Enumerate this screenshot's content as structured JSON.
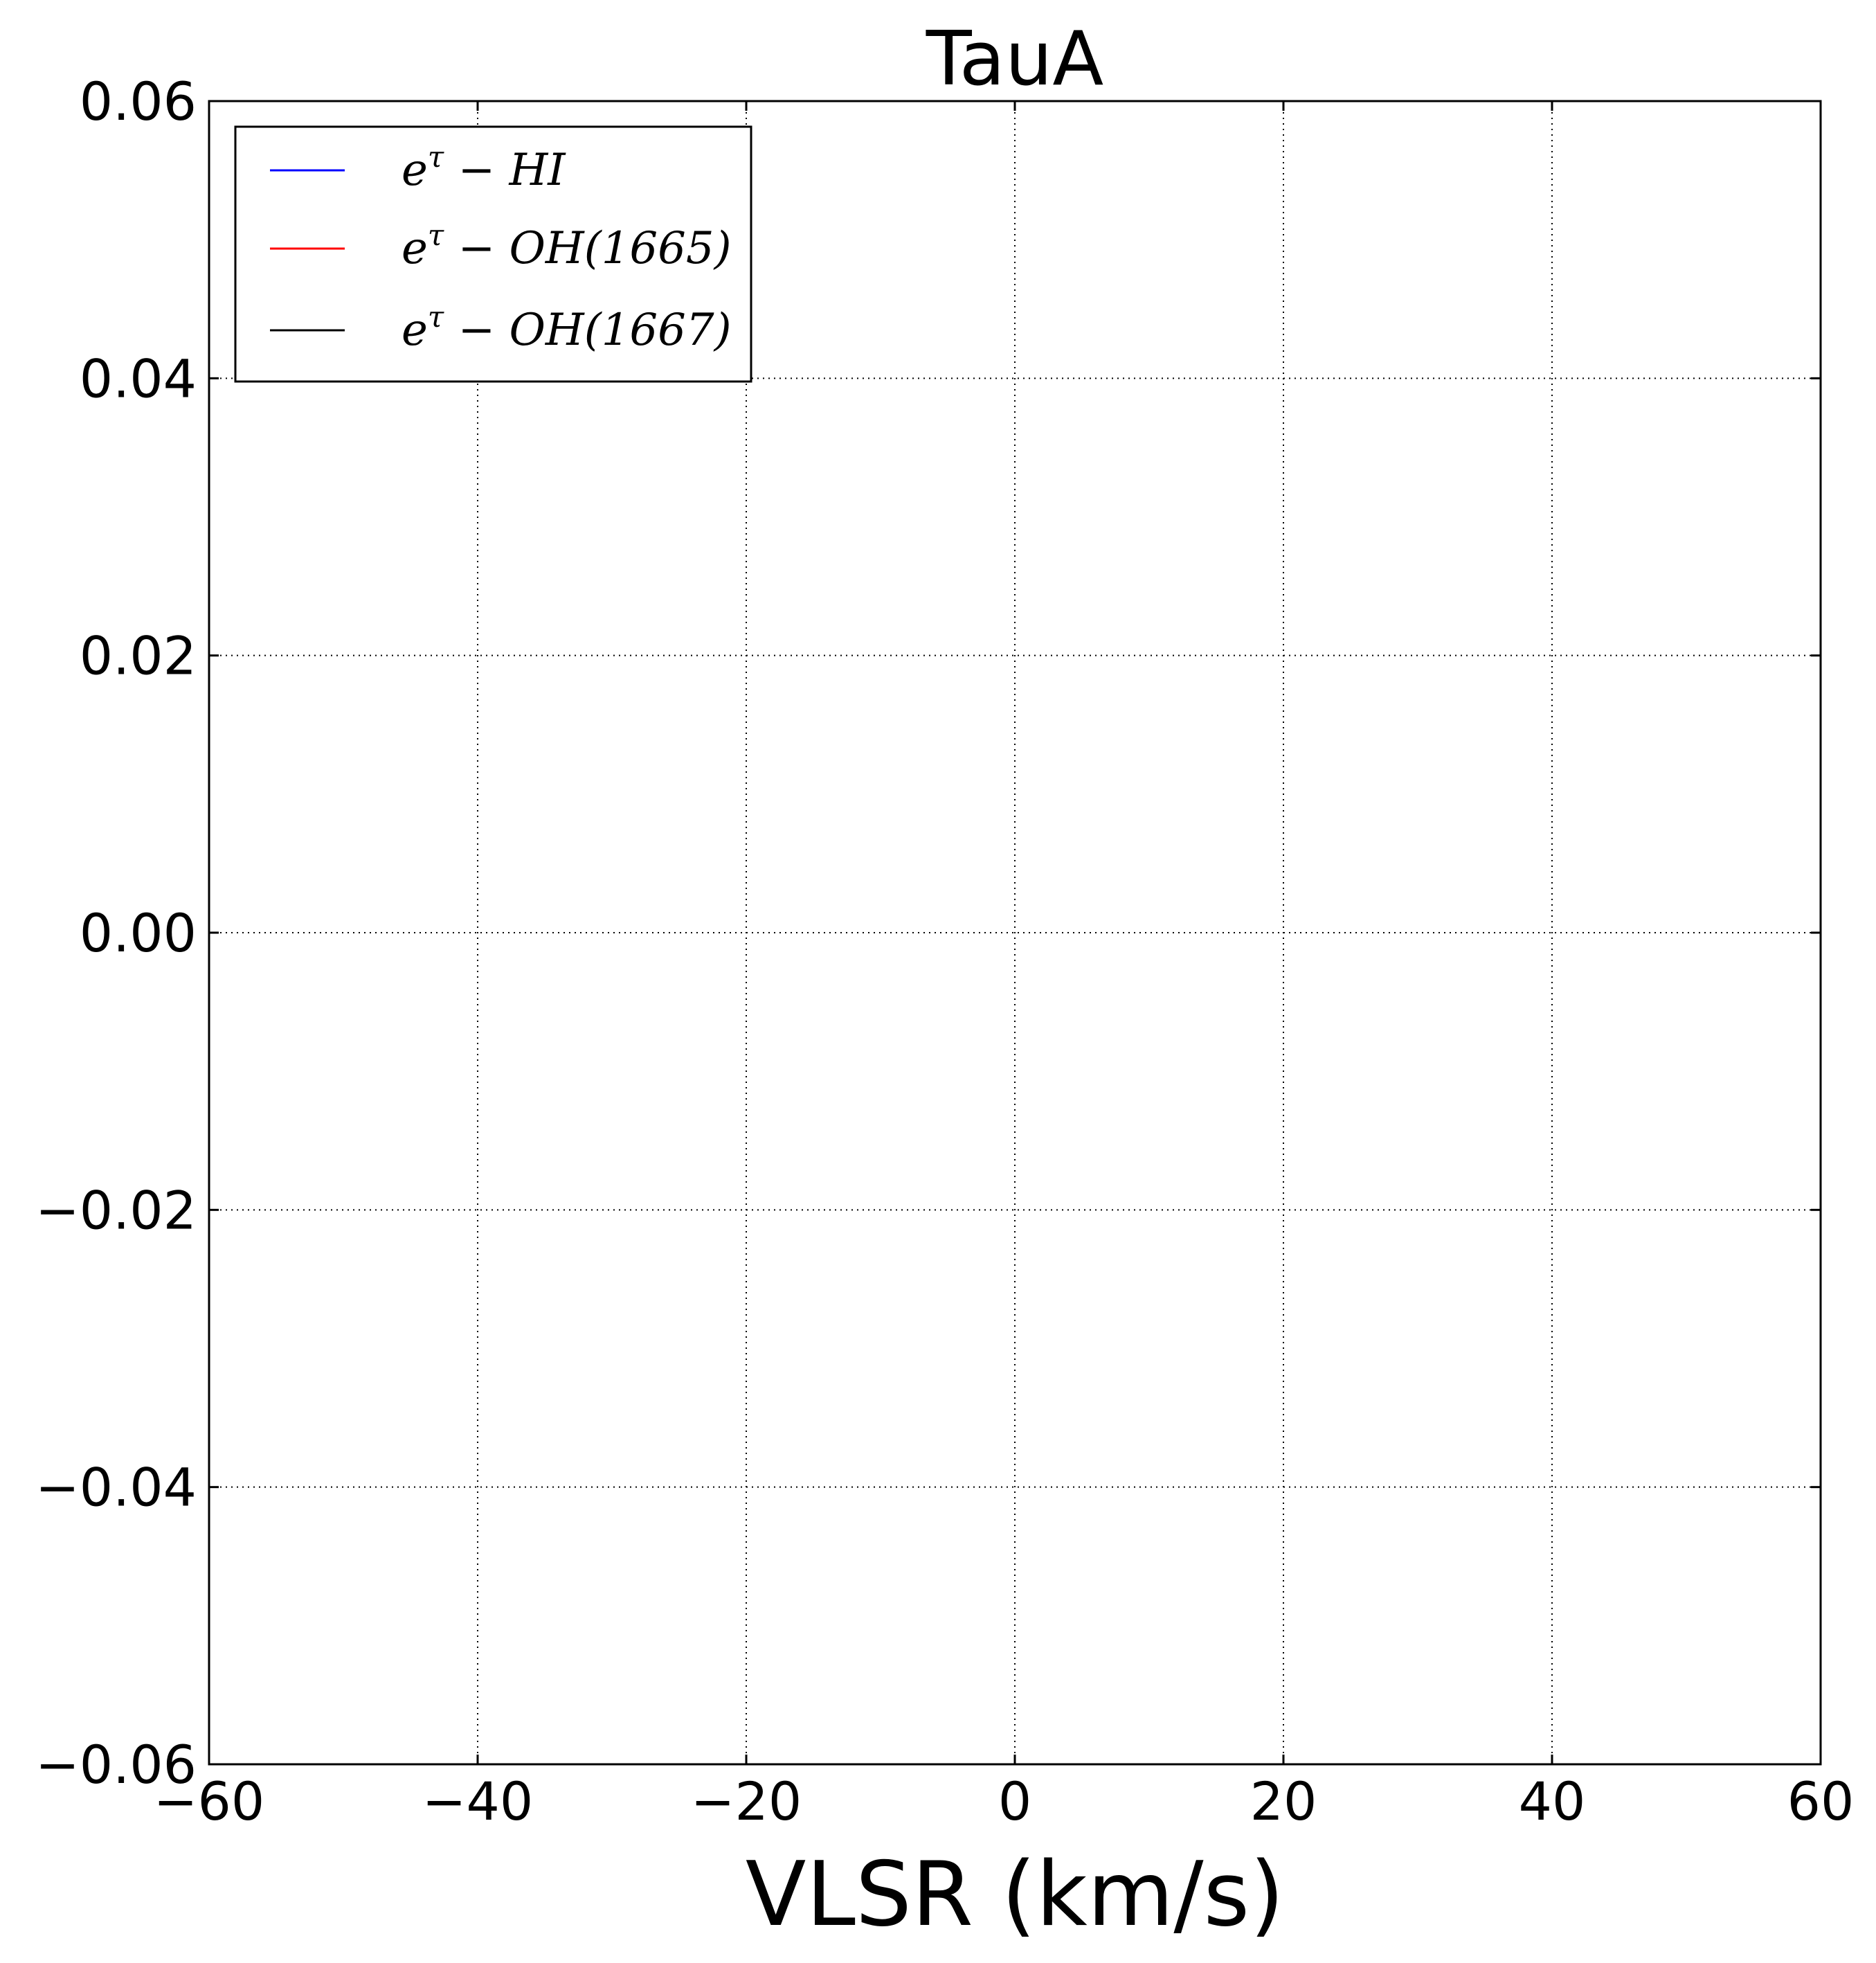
{
  "chart_data": {
    "type": "line",
    "title": "TauA",
    "xlabel": "VLSR (km/s)",
    "ylabel": "",
    "xlim": [
      -60,
      60
    ],
    "ylim": [
      -0.06,
      0.06
    ],
    "x_ticks": [
      -60,
      -40,
      -20,
      0,
      20,
      40,
      60
    ],
    "x_tick_labels": [
      "−60",
      "−40",
      "−20",
      "0",
      "20",
      "40",
      "60"
    ],
    "y_ticks": [
      -0.06,
      -0.04,
      -0.02,
      0.0,
      0.02,
      0.04,
      0.06
    ],
    "y_tick_labels": [
      "−0.06",
      "−0.04",
      "−0.02",
      "0.00",
      "0.02",
      "0.04",
      "0.06"
    ],
    "grid": true,
    "legend_position": "top-left",
    "series": [
      {
        "name": "e^τ − HI",
        "color": "#0000ff",
        "x": [],
        "y": []
      },
      {
        "name": "e^τ − OH(1665)",
        "color": "#ff0000",
        "x": [],
        "y": []
      },
      {
        "name": "e^τ − OH(1667)",
        "color": "#000000",
        "x": [],
        "y": []
      }
    ]
  },
  "legend": {
    "entries": [
      {
        "base": "e",
        "sup": "τ",
        "rest": " − HI"
      },
      {
        "base": "e",
        "sup": "τ",
        "rest": " − OH(1665)"
      },
      {
        "base": "e",
        "sup": "τ",
        "rest": " − OH(1667)"
      }
    ]
  }
}
